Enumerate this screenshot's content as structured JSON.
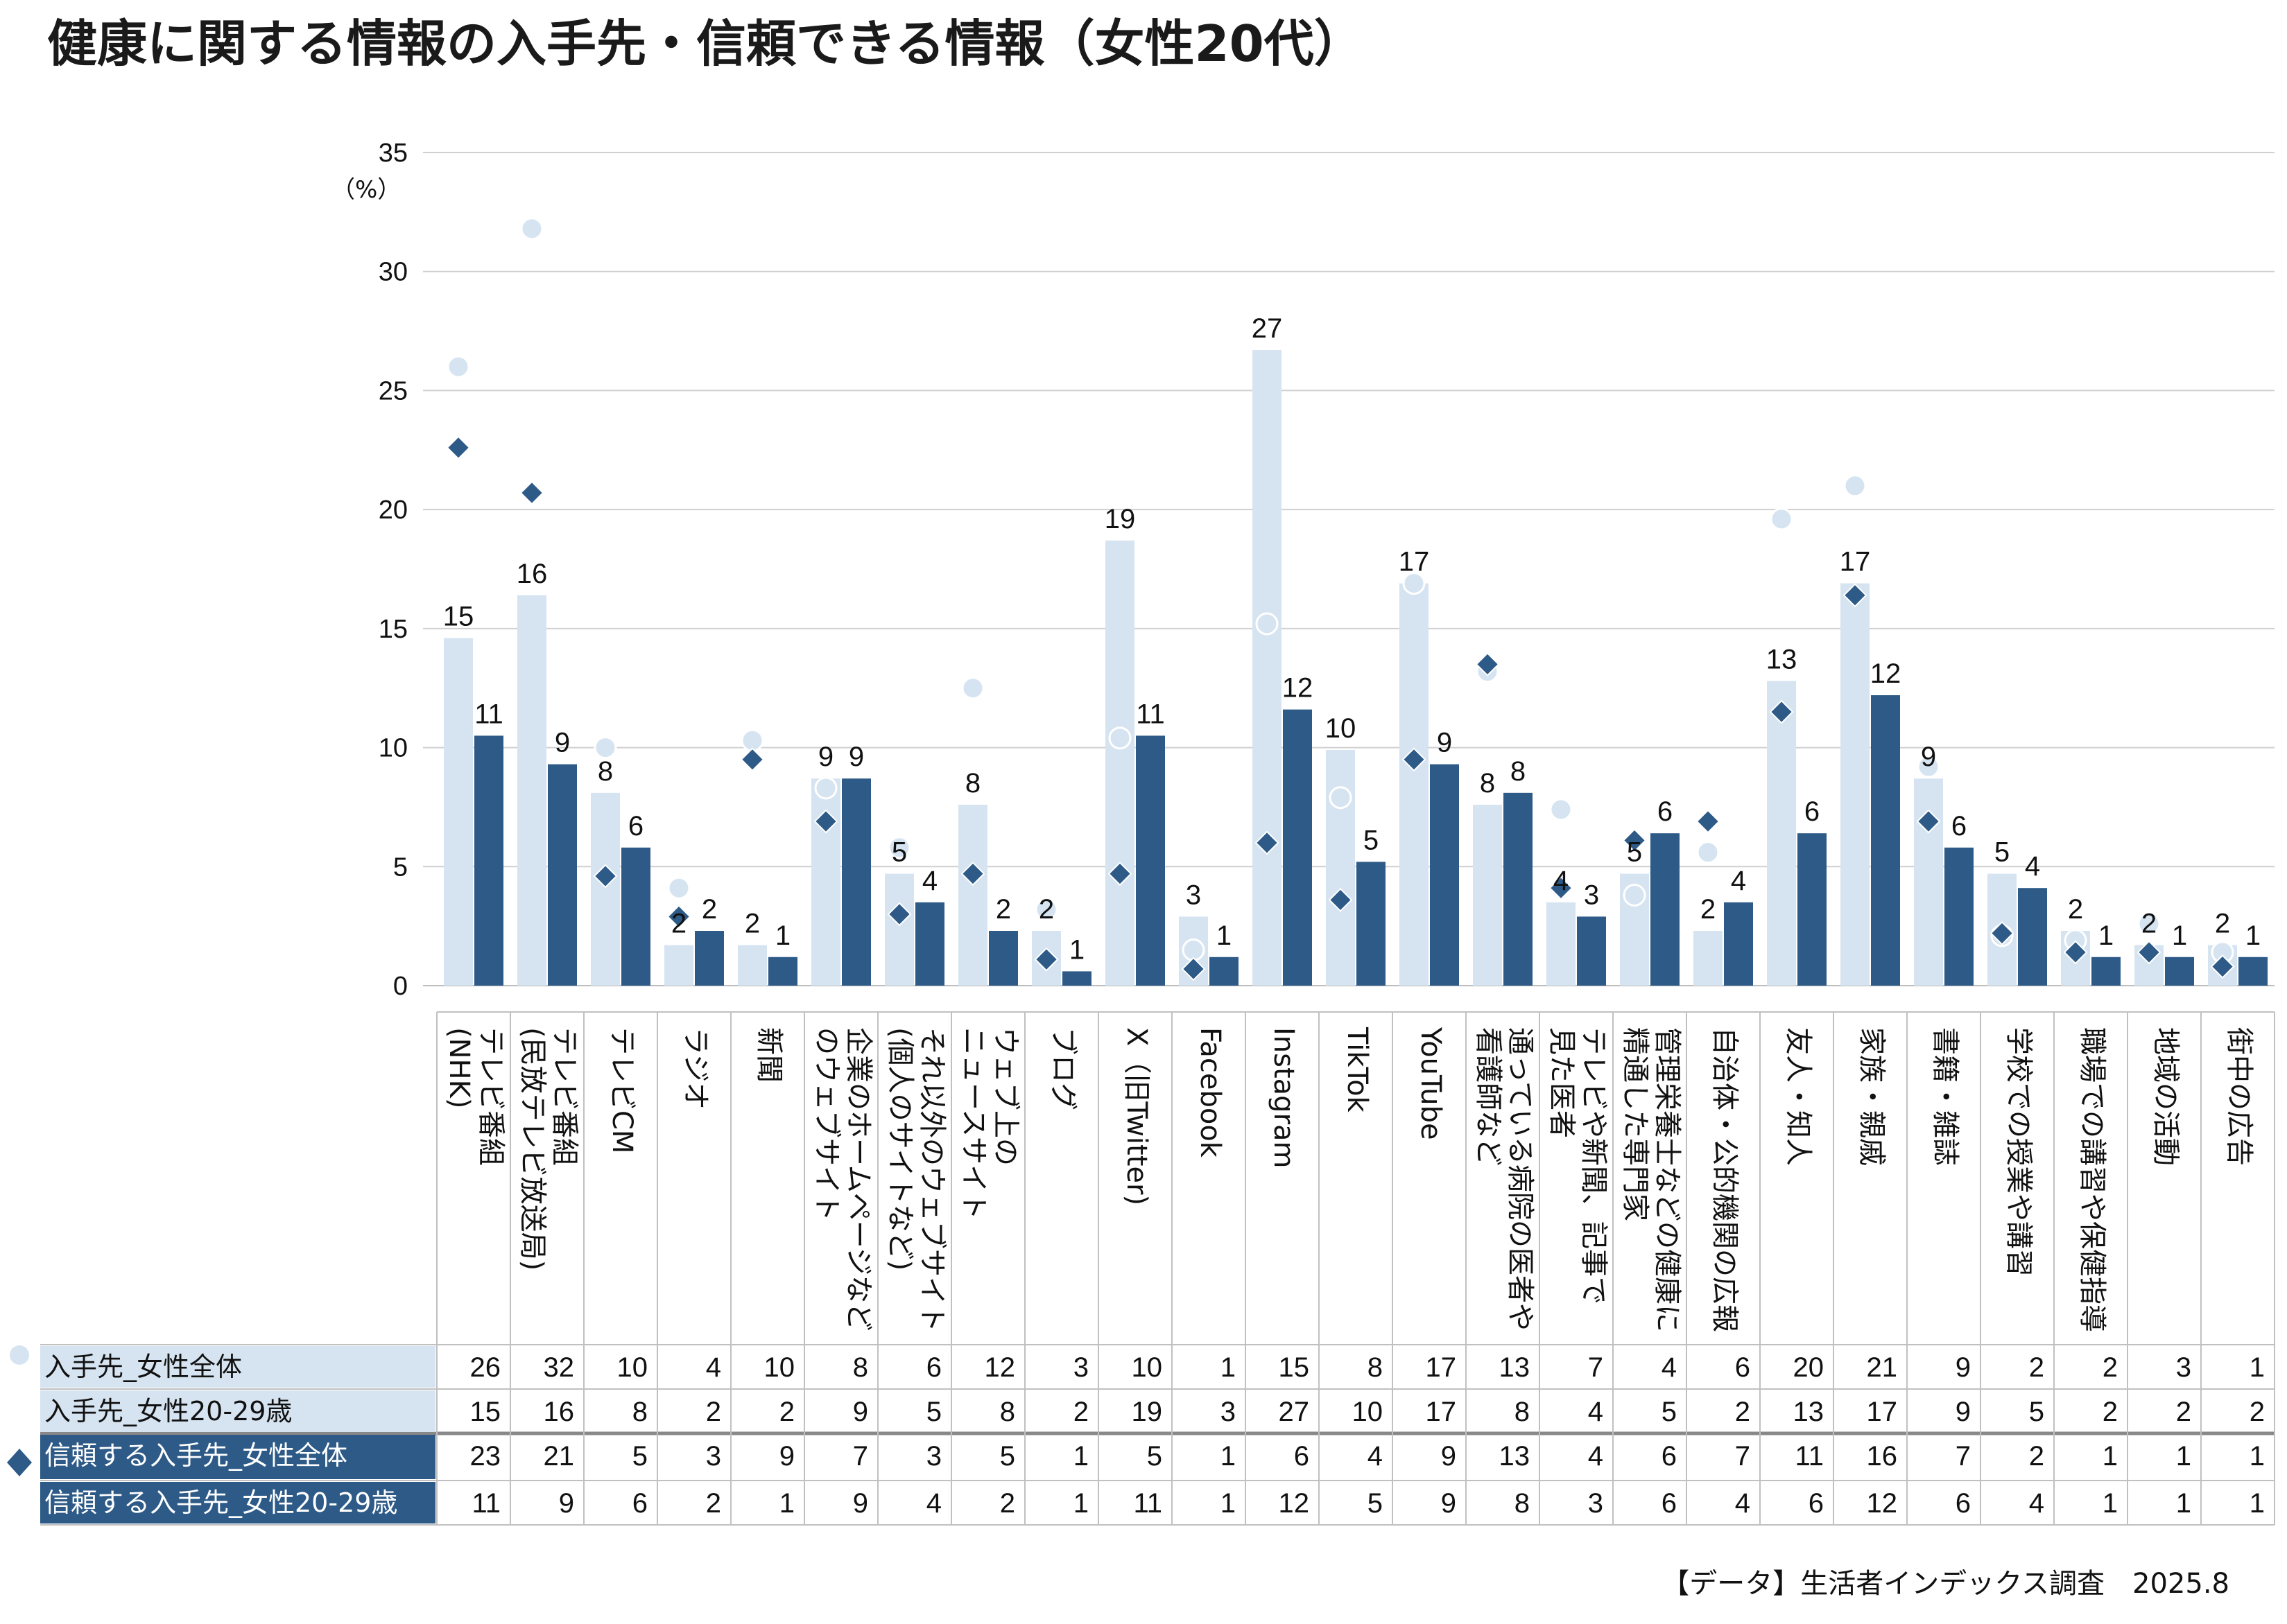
{
  "title": "健康に関する情報の入手先・信頼できる情報（女性20代）",
  "unit": "（%）",
  "source": "【データ】生活者インデックス調査　2025.8",
  "colors": {
    "light_bar": "#d6e4f1",
    "dark_bar": "#2d5a87",
    "light_marker": "#d6e4f1",
    "dark_marker": "#2d5a87",
    "grid": "#d0d0d0",
    "table_border": "#c0c0c0"
  },
  "chart_data": {
    "type": "bar",
    "ylim": [
      0,
      35
    ],
    "yticks": [
      "0",
      "5",
      "10",
      "15",
      "20",
      "25",
      "30",
      "35"
    ],
    "grid": true,
    "categories": [
      "テレビ番組\n(NHK)",
      "テレビ番組\n(民放テレビ放送局)",
      "テレビCM",
      "ラジオ",
      "新聞",
      "企業のホームページなど\nのウェブサイト",
      "それ以外のウェブサイト\n(個人のサイトなど)",
      "ウェブ上の\nニュースサイト",
      "ブログ",
      "X（旧Twitter)",
      "Facebook",
      "Instagram",
      "TikTok",
      "YouTube",
      "通っている病院の医者や\n看護師など",
      "テレビや新聞、記事で\n見た医者",
      "管理栄養士などの健康に\n精通した専門家",
      "自治体・公的機関の広報",
      "友人・知人",
      "家族・親戚",
      "書籍・雑誌",
      "学校での授業や講習",
      "職場での講習や保健指導",
      "地域の活動",
      "街中の広告"
    ],
    "series": [
      {
        "name": "入手先_女性全体",
        "kind": "circle-marker",
        "values": [
          26.0,
          31.8,
          10.0,
          4.1,
          10.3,
          8.3,
          5.8,
          12.5,
          3.2,
          10.4,
          1.5,
          15.2,
          7.9,
          16.9,
          13.2,
          7.4,
          3.8,
          5.6,
          19.6,
          21.0,
          9.2,
          2.1,
          1.9,
          2.6,
          1.4
        ],
        "table_values": [
          "26",
          "32",
          "10",
          "4",
          "10",
          "8",
          "6",
          "12",
          "3",
          "10",
          "1",
          "15",
          "8",
          "17",
          "13",
          "7",
          "4",
          "6",
          "20",
          "21",
          "9",
          "2",
          "2",
          "3",
          "1"
        ]
      },
      {
        "name": "入手先_女性20-29歳",
        "kind": "bar",
        "values": [
          14.6,
          16.4,
          8.1,
          1.7,
          1.7,
          8.7,
          4.7,
          7.6,
          2.3,
          18.7,
          2.9,
          26.7,
          9.9,
          16.9,
          7.6,
          3.5,
          4.7,
          2.3,
          12.8,
          16.9,
          8.7,
          4.7,
          2.3,
          1.7,
          1.7
        ],
        "table_values": [
          "15",
          "16",
          "8",
          "2",
          "2",
          "9",
          "5",
          "8",
          "2",
          "19",
          "3",
          "27",
          "10",
          "17",
          "8",
          "4",
          "5",
          "2",
          "13",
          "17",
          "9",
          "5",
          "2",
          "2",
          "2"
        ]
      },
      {
        "name": "信頼する入手先_女性全体",
        "kind": "diamond-marker",
        "values": [
          22.6,
          20.7,
          4.6,
          2.9,
          9.5,
          6.9,
          3.0,
          4.7,
          1.1,
          4.7,
          0.7,
          6.0,
          3.6,
          9.5,
          13.5,
          4.1,
          6.1,
          6.9,
          11.5,
          16.4,
          6.9,
          2.2,
          1.4,
          1.4,
          0.8
        ],
        "table_values": [
          "23",
          "21",
          "5",
          "3",
          "9",
          "7",
          "3",
          "5",
          "1",
          "5",
          "1",
          "6",
          "4",
          "9",
          "13",
          "4",
          "6",
          "7",
          "11",
          "16",
          "7",
          "2",
          "1",
          "1",
          "1"
        ]
      },
      {
        "name": "信頼する入手先_女性20-29歳",
        "kind": "bar",
        "values": [
          10.5,
          9.3,
          5.8,
          2.3,
          1.2,
          8.7,
          3.5,
          2.3,
          0.6,
          10.5,
          1.2,
          11.6,
          5.2,
          9.3,
          8.1,
          2.9,
          6.4,
          3.5,
          6.4,
          12.2,
          5.8,
          4.1,
          1.2,
          1.2,
          1.2
        ],
        "table_values": [
          "11",
          "9",
          "6",
          "2",
          "1",
          "9",
          "4",
          "2",
          "1",
          "11",
          "1",
          "12",
          "5",
          "9",
          "8",
          "3",
          "6",
          "4",
          "6",
          "12",
          "6",
          "4",
          "1",
          "1",
          "1"
        ]
      }
    ],
    "bar_labels": {
      "light": [
        "15",
        "16",
        "8",
        "2",
        "2",
        "9",
        "5",
        "8",
        "2",
        "19",
        "3",
        "27",
        "10",
        "17",
        "8",
        "4",
        "5",
        "2",
        "13",
        "17",
        "9",
        "5",
        "2",
        "2",
        "2"
      ],
      "dark": [
        "11",
        "9",
        "6",
        "2",
        "1",
        "9",
        "4",
        "2",
        "1",
        "11",
        "1",
        "12",
        "5",
        "9",
        "8",
        "3",
        "6",
        "4",
        "6",
        "12",
        "6",
        "4",
        "1",
        "1",
        "1"
      ]
    }
  }
}
